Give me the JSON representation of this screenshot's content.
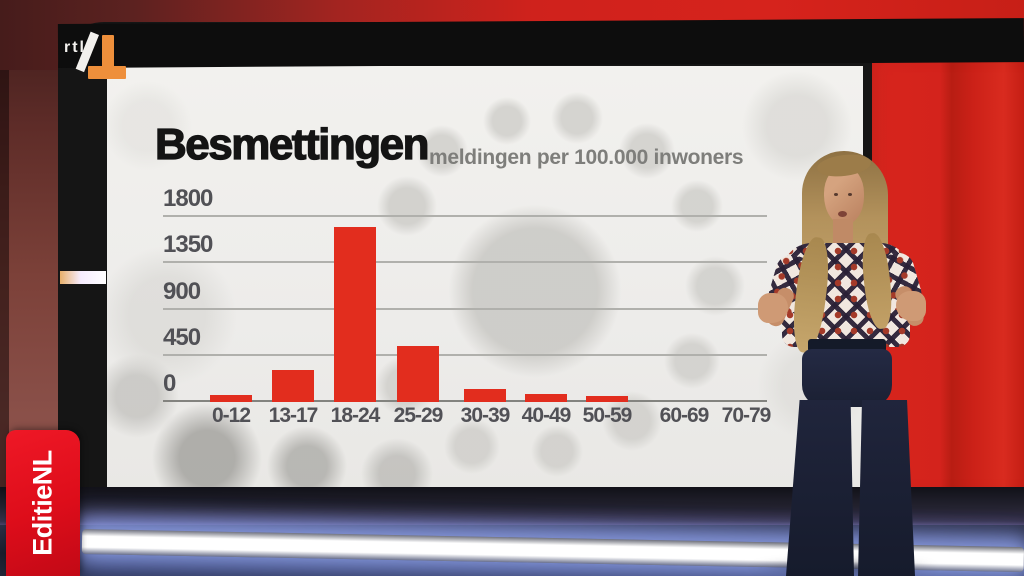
{
  "branding": {
    "channel_text": "rtl",
    "channel_number": "4",
    "program_badge": "EditieNL"
  },
  "chart_data": {
    "type": "bar",
    "title": "Besmettingen",
    "subtitle": "meldingen per 100.000 inwoners",
    "categories": [
      "0-12",
      "13-17",
      "18-24",
      "25-29",
      "30-39",
      "40-49",
      "50-59",
      "60-69",
      "70-79"
    ],
    "values": [
      65,
      310,
      1700,
      540,
      130,
      75,
      60,
      0,
      0
    ],
    "y_ticks": [
      1800,
      1350,
      900,
      450,
      0
    ],
    "ylim": [
      0,
      1800
    ],
    "grid": true,
    "legend": "none",
    "bar_color": "#e22d1e",
    "title_color": "#141414",
    "subtitle_color": "#7e7e7b",
    "tick_label_color": "#515156",
    "gridline_color": "#b0b0ac",
    "background_image": "coronavirus-microscopy-grayscale"
  },
  "studio": {
    "red_wall_color": "#d6231c",
    "maroon_wall_color": "#7c4139",
    "screen_color": "#f0efec",
    "bezel_color": "#151515",
    "led_strip_color": "#ffffff"
  }
}
